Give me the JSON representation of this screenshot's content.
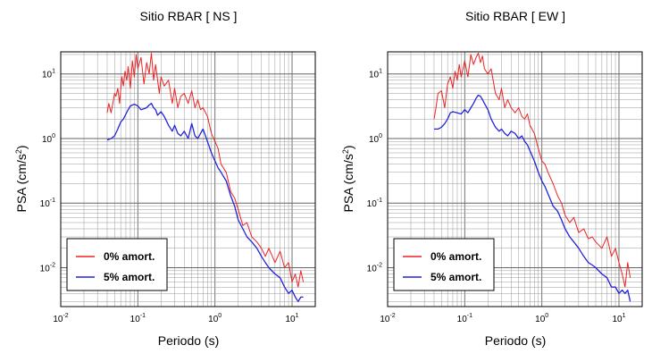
{
  "chart_data": [
    {
      "type": "line",
      "title": "Sitio RBAR [ NS ]",
      "xlabel": "Periodo (s)",
      "ylabel_base": "PSA (cm/s",
      "ylabel_sup": "2",
      "ylabel_end": ")",
      "xscale": "log",
      "yscale": "log",
      "xlim": [
        0.01,
        20
      ],
      "ylim": [
        0.0025,
        22
      ],
      "grid": true,
      "legend_position": "bottom-left",
      "x_ticks": [
        {
          "base": "10",
          "exp": "-2",
          "value": 0.01
        },
        {
          "base": "10",
          "exp": "-1",
          "value": 0.1
        },
        {
          "base": "10",
          "exp": "0",
          "value": 1
        },
        {
          "base": "10",
          "exp": "1",
          "value": 10
        }
      ],
      "y_ticks": [
        {
          "base": "10",
          "exp": "1",
          "value": 10
        },
        {
          "base": "10",
          "exp": "0",
          "value": 1
        },
        {
          "base": "10",
          "exp": "-1",
          "value": 0.1
        },
        {
          "base": "10",
          "exp": "-2",
          "value": 0.01
        }
      ],
      "series": [
        {
          "name": "0% amort.",
          "color": "#ee2222",
          "x": [
            0.04,
            0.042,
            0.045,
            0.05,
            0.052,
            0.055,
            0.058,
            0.062,
            0.065,
            0.068,
            0.072,
            0.075,
            0.08,
            0.085,
            0.09,
            0.095,
            0.1,
            0.11,
            0.12,
            0.13,
            0.14,
            0.15,
            0.16,
            0.17,
            0.19,
            0.2,
            0.22,
            0.25,
            0.28,
            0.3,
            0.33,
            0.36,
            0.4,
            0.45,
            0.5,
            0.55,
            0.6,
            0.65,
            0.7,
            0.8,
            0.9,
            1.0,
            1.1,
            1.2,
            1.4,
            1.6,
            1.8,
            2.0,
            2.3,
            2.6,
            3.0,
            3.5,
            4.0,
            4.5,
            5.0,
            6.0,
            7.0,
            8.0,
            9.0,
            10.0,
            11.0,
            12.0,
            13.0,
            14.0
          ],
          "values": [
            2.5,
            3.5,
            2.5,
            5.0,
            4.5,
            6.0,
            3.5,
            9.0,
            6.5,
            11.0,
            8.0,
            13.0,
            6.0,
            16.0,
            9.0,
            20.0,
            12.0,
            18.0,
            7.0,
            15.0,
            10.0,
            21.0,
            8.0,
            14.0,
            5.0,
            9.0,
            6.5,
            8.0,
            3.5,
            6.0,
            3.0,
            4.5,
            5.0,
            3.5,
            5.5,
            3.0,
            4.0,
            2.8,
            3.0,
            2.2,
            1.2,
            0.9,
            0.7,
            0.4,
            0.3,
            0.15,
            0.12,
            0.08,
            0.045,
            0.05,
            0.03,
            0.025,
            0.02,
            0.015,
            0.02,
            0.012,
            0.018,
            0.01,
            0.012,
            0.006,
            0.008,
            0.005,
            0.009,
            0.006
          ]
        },
        {
          "name": "5% amort.",
          "color": "#2222dd",
          "x": [
            0.04,
            0.045,
            0.05,
            0.055,
            0.06,
            0.065,
            0.07,
            0.075,
            0.08,
            0.085,
            0.09,
            0.1,
            0.11,
            0.12,
            0.13,
            0.14,
            0.15,
            0.16,
            0.17,
            0.18,
            0.2,
            0.22,
            0.25,
            0.28,
            0.3,
            0.33,
            0.36,
            0.4,
            0.45,
            0.5,
            0.55,
            0.6,
            0.65,
            0.7,
            0.8,
            0.9,
            1.0,
            1.1,
            1.2,
            1.4,
            1.6,
            1.8,
            2.0,
            2.3,
            2.6,
            3.0,
            3.5,
            4.0,
            4.5,
            5.0,
            6.0,
            7.0,
            8.0,
            9.0,
            10.0,
            11.0,
            12.0,
            13.0,
            14.0
          ],
          "values": [
            0.95,
            1.0,
            1.1,
            1.4,
            1.8,
            2.0,
            2.4,
            2.8,
            3.2,
            3.3,
            3.4,
            3.2,
            2.8,
            2.9,
            3.0,
            3.3,
            3.5,
            3.0,
            2.8,
            2.3,
            2.6,
            2.2,
            1.6,
            1.3,
            1.6,
            1.2,
            1.1,
            1.3,
            1.0,
            1.7,
            1.1,
            1.0,
            1.2,
            1.4,
            0.9,
            0.6,
            0.45,
            0.35,
            0.3,
            0.22,
            0.13,
            0.09,
            0.055,
            0.04,
            0.03,
            0.025,
            0.02,
            0.015,
            0.012,
            0.01,
            0.008,
            0.007,
            0.005,
            0.004,
            0.0045,
            0.0035,
            0.003,
            0.0035,
            0.0035
          ]
        }
      ]
    },
    {
      "type": "line",
      "title": "Sitio RBAR [ EW ]",
      "xlabel": "Periodo (s)",
      "ylabel_base": "PSA (cm/s",
      "ylabel_sup": "2",
      "ylabel_end": ")",
      "xscale": "log",
      "yscale": "log",
      "xlim": [
        0.01,
        20
      ],
      "ylim": [
        0.0025,
        22
      ],
      "grid": true,
      "legend_position": "bottom-left",
      "x_ticks": [
        {
          "base": "10",
          "exp": "-2",
          "value": 0.01
        },
        {
          "base": "10",
          "exp": "-1",
          "value": 0.1
        },
        {
          "base": "10",
          "exp": "0",
          "value": 1
        },
        {
          "base": "10",
          "exp": "1",
          "value": 10
        }
      ],
      "y_ticks": [
        {
          "base": "10",
          "exp": "1",
          "value": 10
        },
        {
          "base": "10",
          "exp": "0",
          "value": 1
        },
        {
          "base": "10",
          "exp": "-1",
          "value": 0.1
        },
        {
          "base": "10",
          "exp": "-2",
          "value": 0.01
        }
      ],
      "series": [
        {
          "name": "0% amort.",
          "color": "#ee2222",
          "x": [
            0.04,
            0.042,
            0.045,
            0.05,
            0.055,
            0.06,
            0.065,
            0.07,
            0.075,
            0.08,
            0.085,
            0.09,
            0.1,
            0.11,
            0.12,
            0.13,
            0.14,
            0.15,
            0.16,
            0.17,
            0.18,
            0.2,
            0.22,
            0.25,
            0.28,
            0.3,
            0.33,
            0.36,
            0.4,
            0.45,
            0.5,
            0.55,
            0.6,
            0.65,
            0.7,
            0.8,
            0.9,
            1.0,
            1.1,
            1.2,
            1.4,
            1.6,
            1.8,
            2.0,
            2.3,
            2.6,
            3.0,
            3.5,
            4.0,
            4.5,
            5.0,
            6.0,
            7.0,
            8.0,
            9.0,
            10.0,
            11.0,
            12.0,
            13.0,
            14.0
          ],
          "values": [
            2.0,
            2.8,
            5.0,
            5.5,
            3.0,
            7.0,
            9.0,
            6.0,
            11.0,
            8.0,
            14.0,
            9.0,
            16.0,
            9.0,
            20.0,
            14.0,
            18.0,
            21.0,
            15.0,
            19.0,
            12.0,
            10.0,
            12.0,
            5.0,
            4.0,
            6.0,
            3.0,
            4.0,
            3.0,
            2.5,
            3.0,
            2.2,
            2.0,
            2.4,
            1.6,
            1.2,
            0.7,
            0.45,
            0.4,
            0.3,
            0.2,
            0.13,
            0.1,
            0.065,
            0.05,
            0.06,
            0.035,
            0.04,
            0.028,
            0.03,
            0.025,
            0.02,
            0.03,
            0.015,
            0.02,
            0.012,
            0.008,
            0.005,
            0.012,
            0.007
          ]
        },
        {
          "name": "5% amort.",
          "color": "#2222dd",
          "x": [
            0.04,
            0.045,
            0.05,
            0.055,
            0.06,
            0.065,
            0.07,
            0.08,
            0.09,
            0.1,
            0.11,
            0.12,
            0.13,
            0.14,
            0.15,
            0.16,
            0.17,
            0.18,
            0.2,
            0.22,
            0.25,
            0.28,
            0.3,
            0.33,
            0.36,
            0.4,
            0.45,
            0.5,
            0.55,
            0.6,
            0.65,
            0.7,
            0.8,
            0.9,
            1.0,
            1.1,
            1.2,
            1.4,
            1.6,
            1.8,
            2.0,
            2.3,
            2.6,
            3.0,
            3.5,
            4.0,
            4.5,
            5.0,
            6.0,
            7.0,
            8.0,
            9.0,
            10.0,
            11.0,
            12.0,
            13.0,
            14.0
          ],
          "values": [
            1.4,
            1.4,
            1.5,
            1.7,
            2.0,
            2.5,
            2.6,
            2.5,
            2.4,
            2.8,
            2.5,
            3.0,
            3.5,
            4.2,
            4.7,
            4.5,
            4.0,
            3.5,
            2.8,
            2.0,
            1.5,
            1.3,
            1.4,
            1.2,
            1.1,
            1.3,
            1.2,
            1.0,
            1.1,
            0.9,
            0.8,
            0.65,
            0.45,
            0.3,
            0.22,
            0.18,
            0.14,
            0.09,
            0.075,
            0.055,
            0.04,
            0.03,
            0.025,
            0.02,
            0.015,
            0.012,
            0.011,
            0.01,
            0.008,
            0.007,
            0.005,
            0.005,
            0.004,
            0.0045,
            0.004,
            0.0045,
            0.003
          ]
        }
      ]
    }
  ]
}
